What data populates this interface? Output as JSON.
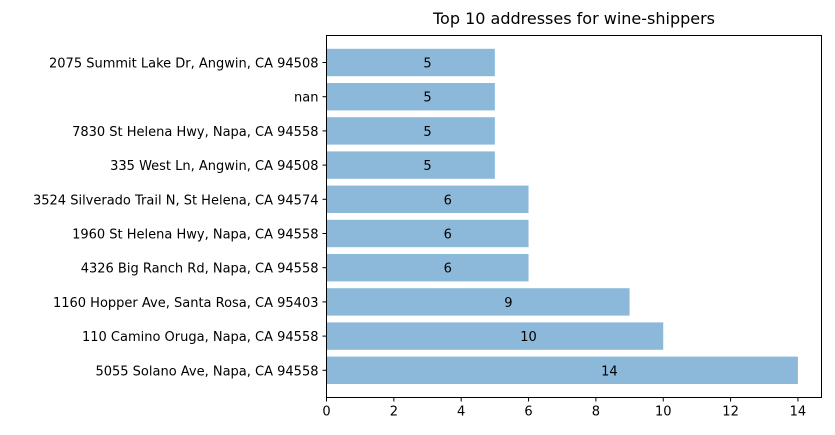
{
  "chart_data": {
    "type": "bar",
    "orientation": "horizontal",
    "title": "Top 10 addresses for wine-shippers",
    "xlabel": "",
    "ylabel": "",
    "categories": [
      "2075 Summit Lake Dr, Angwin, CA 94508",
      "nan",
      "7830 St Helena Hwy, Napa, CA 94558",
      "335 West Ln, Angwin, CA 94508",
      "3524 Silverado Trail N, St Helena, CA 94574",
      "1960 St Helena Hwy, Napa, CA 94558",
      "4326 Big Ranch Rd, Napa, CA 94558",
      "1160 Hopper Ave, Santa Rosa, CA 95403",
      "110 Camino Oruga, Napa, CA 94558",
      "5055 Solano Ave, Napa, CA 94558"
    ],
    "values": [
      5,
      5,
      5,
      5,
      6,
      6,
      6,
      9,
      10,
      14
    ],
    "xlim": [
      0,
      14.7
    ],
    "xticks": [
      "0",
      "2",
      "4",
      "6",
      "8",
      "10",
      "12",
      "14"
    ],
    "bar_color": "#8cb9da",
    "grid": false,
    "data_labels": true
  }
}
